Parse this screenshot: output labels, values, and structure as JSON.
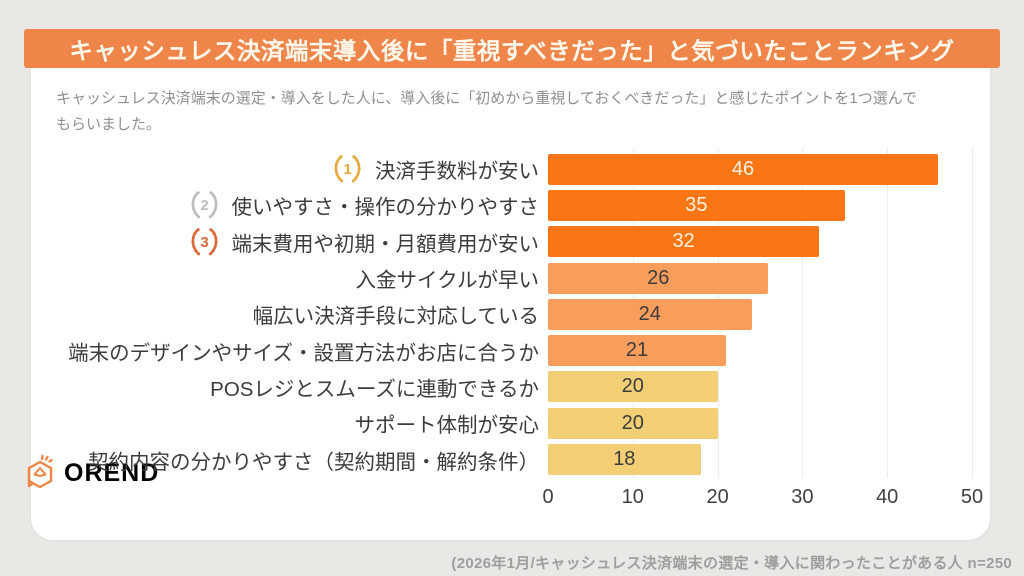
{
  "header": {
    "title": "キャッシュレス決済端末導入後に「重視すべきだった」と気づいたことランキング",
    "subtitle_line1": "キャッシュレス決済端末の選定・導入をした人に、導入後に「初めから重視しておくべきだった」と感じたポイントを1つ選んで",
    "subtitle_line2": "もらいました。"
  },
  "chart_data": {
    "type": "bar",
    "orientation": "horizontal",
    "title": "キャッシュレス決済端末導入後に「重視すべきだった」と気づいたことランキング",
    "xlabel": "",
    "ylabel": "",
    "xlim": [
      0,
      50
    ],
    "x_ticks": [
      0,
      10,
      20,
      30,
      40,
      50
    ],
    "grid": true,
    "categories": [
      "決済手数料が安い",
      "使いやすさ・操作の分かりやすさ",
      "端末費用や初期・月額費用が安い",
      "入金サイクルが早い",
      "幅広い決済手段に対応している",
      "端末のデザインやサイズ・設置方法がお店に合うか",
      "POSレジとスムーズに連動できるか",
      "サポート体制が安心",
      "契約内容の分かりやすさ（契約期間・解約条件）"
    ],
    "values": [
      46,
      35,
      32,
      26,
      24,
      21,
      20,
      20,
      18
    ],
    "items": [
      {
        "rank": 1,
        "medal": "gold",
        "label": "決済手数料が安い",
        "value": 46,
        "bar_color": "#FA7514",
        "value_color": "#FDF3E0"
      },
      {
        "rank": 2,
        "medal": "silver",
        "label": "使いやすさ・操作の分かりやすさ",
        "value": 35,
        "bar_color": "#FA7514",
        "value_color": "#FDF3E0"
      },
      {
        "rank": 3,
        "medal": "bronze",
        "label": "端末費用や初期・月額費用が安い",
        "value": 32,
        "bar_color": "#FA7514",
        "value_color": "#FDF3E0"
      },
      {
        "rank": 4,
        "medal": null,
        "label": "入金サイクルが早い",
        "value": 26,
        "bar_color": "#F99D5D",
        "value_color": "#3D3D3D"
      },
      {
        "rank": 5,
        "medal": null,
        "label": "幅広い決済手段に対応している",
        "value": 24,
        "bar_color": "#F99D5D",
        "value_color": "#3D3D3D"
      },
      {
        "rank": 6,
        "medal": null,
        "label": "端末のデザインやサイズ・設置方法がお店に合うか",
        "value": 21,
        "bar_color": "#F99D5D",
        "value_color": "#3D3D3D"
      },
      {
        "rank": 7,
        "medal": null,
        "label": "POSレジとスムーズに連動できるか",
        "value": 20,
        "bar_color": "#F2CE75",
        "value_color": "#3D3D3D"
      },
      {
        "rank": 8,
        "medal": null,
        "label": "サポート体制が安心",
        "value": 20,
        "bar_color": "#F2CE75",
        "value_color": "#3D3D3D"
      },
      {
        "rank": 9,
        "medal": null,
        "label": "契約内容の分かりやすさ（契約期間・解約条件）",
        "value": 18,
        "bar_color": "#F2CE75",
        "value_color": "#3D3D3D"
      }
    ],
    "medal_colors": {
      "gold": "#E7A93E",
      "silver": "#BDBDBD",
      "bronze": "#DC6737"
    },
    "legend": null
  },
  "colors": {
    "banner_bg": "#F0854A",
    "banner_text": "#FFF9ED",
    "page_bg": "#E9E8E5",
    "card_bg": "#FFFFFF",
    "logo_color": "#EF8644"
  },
  "branding": {
    "logo_text": "OREND"
  },
  "footer": {
    "note": "(2026年1月/キャッシュレス決済端末の選定・導入に関わったことがある人  n=250"
  }
}
